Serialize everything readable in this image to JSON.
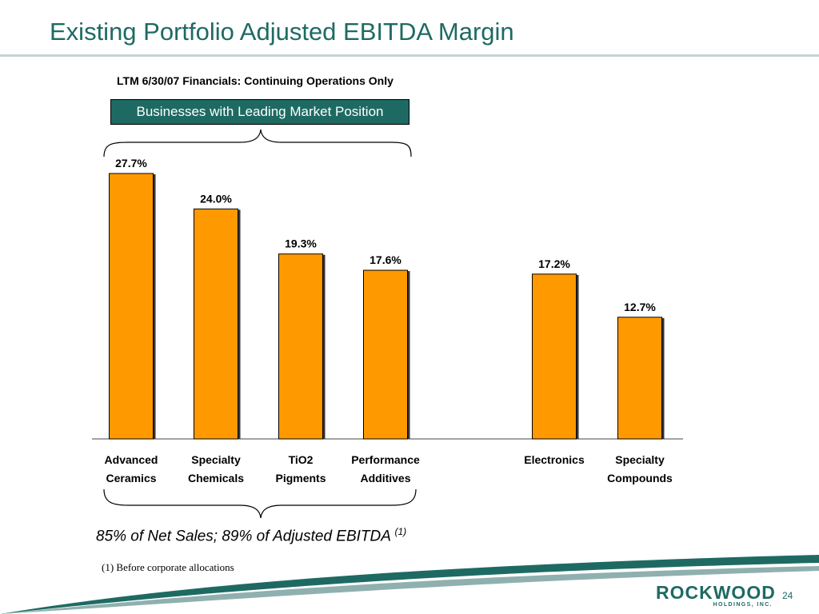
{
  "header": {
    "title": "Existing Portfolio Adjusted EBITDA Margin",
    "subtitle": "LTM 6/30/07 Financials: Continuing Operations Only"
  },
  "leading_box": {
    "label": "Businesses with Leading Market Position"
  },
  "notes": {
    "share": "85% of Net Sales; 89% of Adjusted EBITDA",
    "share_ref": "(1)",
    "footnote": "(1) Before corporate allocations"
  },
  "footer": {
    "logo_text": "ROCKWOOD",
    "logo_subtext": "HOLDINGS, INC.",
    "page_number": "24"
  },
  "colors": {
    "accent": "#1e6a63",
    "bar": "#ff9900"
  },
  "chart_data": {
    "type": "bar",
    "categories": [
      [
        "Advanced",
        "Ceramics"
      ],
      [
        "Specialty",
        "Chemicals"
      ],
      [
        "TiO2",
        "Pigments"
      ],
      [
        "Performance",
        "Additives"
      ],
      [
        "Electronics"
      ],
      [
        "Specialty",
        "Compounds"
      ]
    ],
    "values": [
      27.7,
      24.0,
      19.3,
      17.6,
      17.2,
      12.7
    ],
    "value_labels": [
      "27.7%",
      "24.0%",
      "19.3%",
      "17.6%",
      "17.2%",
      "12.7%"
    ],
    "unit": "%",
    "ylim": [
      0,
      27.7
    ],
    "grid": false,
    "legend": "none",
    "groups": [
      {
        "label": "Businesses with Leading Market Position",
        "members": [
          0,
          1,
          2,
          3
        ]
      },
      {
        "label": "85% of Net Sales; 89% of Adjusted EBITDA",
        "members": [
          0,
          1,
          2,
          3
        ]
      }
    ]
  }
}
